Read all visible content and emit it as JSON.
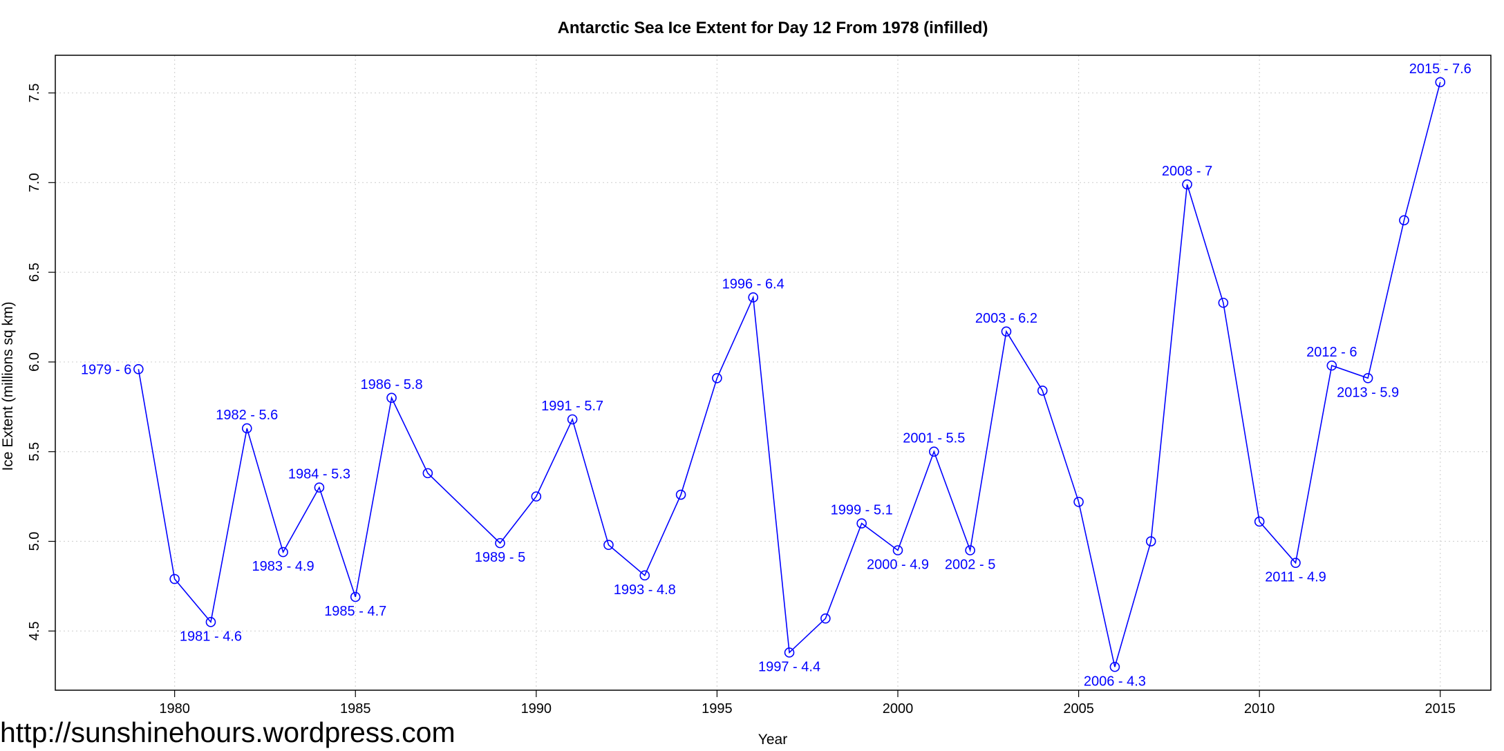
{
  "chart_data": {
    "type": "line",
    "title": "Antarctic Sea Ice Extent for Day 12 From 1978 (infilled)",
    "xlabel": "Year",
    "ylabel": "Ice Extent (millions sq km)",
    "xlim": [
      1976.7,
      2016.4
    ],
    "ylim": [
      4.17,
      7.71
    ],
    "xticks": [
      1980,
      1985,
      1990,
      1995,
      2000,
      2005,
      2010,
      2015
    ],
    "yticks": [
      4.5,
      5.0,
      5.5,
      6.0,
      6.5,
      7.0,
      7.5
    ],
    "ytick_labels": [
      "4.5",
      "5.0",
      "5.5",
      "6.0",
      "6.5",
      "7.0",
      "7.5"
    ],
    "grid": true,
    "line_color": "#0000ff",
    "marker": "open-circle",
    "series": [
      {
        "x": [
          1979,
          1980,
          1981,
          1982,
          1983,
          1984,
          1985,
          1986,
          1987,
          1989,
          1990,
          1991,
          1992,
          1993,
          1994,
          1995,
          1996,
          1997,
          1998,
          1999,
          2000,
          2001,
          2002,
          2003,
          2004,
          2005,
          2006,
          2007,
          2008,
          2009,
          2010,
          2011,
          2012,
          2013,
          2014,
          2015
        ],
        "values": [
          5.96,
          4.79,
          4.55,
          5.63,
          4.94,
          5.3,
          4.69,
          5.8,
          5.38,
          4.99,
          5.25,
          5.68,
          4.98,
          4.81,
          5.26,
          5.91,
          6.36,
          4.38,
          4.57,
          5.1,
          4.95,
          5.5,
          4.95,
          6.17,
          5.84,
          5.22,
          4.3,
          5.0,
          6.99,
          6.33,
          5.11,
          4.88,
          5.98,
          5.91,
          6.79,
          7.56
        ]
      }
    ],
    "annotations": [
      {
        "x": 1979,
        "y": 5.96,
        "text": "1979 - 6",
        "position": "left"
      },
      {
        "x": 1981,
        "y": 4.55,
        "text": "1981 - 4.6",
        "position": "below"
      },
      {
        "x": 1982,
        "y": 5.63,
        "text": "1982 - 5.6",
        "position": "above"
      },
      {
        "x": 1983,
        "y": 4.94,
        "text": "1983 - 4.9",
        "position": "below"
      },
      {
        "x": 1984,
        "y": 5.3,
        "text": "1984 - 5.3",
        "position": "above"
      },
      {
        "x": 1985,
        "y": 4.69,
        "text": "1985 - 4.7",
        "position": "below"
      },
      {
        "x": 1986,
        "y": 5.8,
        "text": "1986 - 5.8",
        "position": "above"
      },
      {
        "x": 1989,
        "y": 4.99,
        "text": "1989 - 5",
        "position": "below"
      },
      {
        "x": 1991,
        "y": 5.68,
        "text": "1991 - 5.7",
        "position": "above"
      },
      {
        "x": 1993,
        "y": 4.81,
        "text": "1993 - 4.8",
        "position": "below"
      },
      {
        "x": 1996,
        "y": 6.36,
        "text": "1996 - 6.4",
        "position": "above"
      },
      {
        "x": 1997,
        "y": 4.38,
        "text": "1997 - 4.4",
        "position": "below"
      },
      {
        "x": 1999,
        "y": 5.1,
        "text": "1999 - 5.1",
        "position": "above"
      },
      {
        "x": 2000,
        "y": 4.95,
        "text": "2000 - 4.9",
        "position": "below"
      },
      {
        "x": 2001,
        "y": 5.5,
        "text": "2001 - 5.5",
        "position": "above"
      },
      {
        "x": 2002,
        "y": 4.95,
        "text": "2002 - 5",
        "position": "below"
      },
      {
        "x": 2003,
        "y": 6.17,
        "text": "2003 - 6.2",
        "position": "above"
      },
      {
        "x": 2006,
        "y": 4.3,
        "text": "2006 - 4.3",
        "position": "below"
      },
      {
        "x": 2008,
        "y": 6.99,
        "text": "2008 - 7",
        "position": "above"
      },
      {
        "x": 2011,
        "y": 4.88,
        "text": "2011 - 4.9",
        "position": "below"
      },
      {
        "x": 2012,
        "y": 5.98,
        "text": "2012 - 6",
        "position": "above"
      },
      {
        "x": 2013,
        "y": 5.91,
        "text": "2013 - 5.9",
        "position": "below"
      },
      {
        "x": 2015,
        "y": 7.56,
        "text": "2015 - 7.6",
        "position": "above"
      }
    ]
  },
  "watermark": "http://sunshinehours.wordpress.com"
}
